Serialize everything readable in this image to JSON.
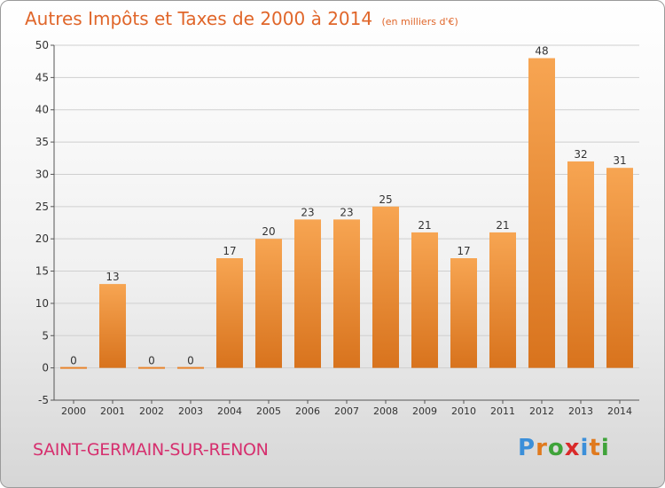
{
  "title": "Autres Impôts et Taxes de 2000 à 2014",
  "subtitle": "(en milliers d'€)",
  "commune": "SAINT-GERMAIN-SUR-RENON",
  "logo": {
    "letters": [
      "P",
      "r",
      "o",
      "x",
      "i",
      "t",
      "i"
    ],
    "colors": [
      "#3b8fd9",
      "#e07a1e",
      "#3fa33a",
      "#d92a2a",
      "#3b8fd9",
      "#e07a1e",
      "#3fa33a"
    ]
  },
  "chart_data": {
    "type": "bar",
    "categories": [
      "2000",
      "2001",
      "2002",
      "2003",
      "2004",
      "2005",
      "2006",
      "2007",
      "2008",
      "2009",
      "2010",
      "2011",
      "2012",
      "2013",
      "2014"
    ],
    "values": [
      0,
      13,
      0,
      0,
      17,
      20,
      23,
      23,
      25,
      21,
      17,
      21,
      48,
      32,
      31
    ],
    "data_labels": [
      "0",
      "13",
      "0",
      "0",
      "17",
      "20",
      "23",
      "23",
      "25",
      "21",
      "17",
      "21",
      "48",
      "32",
      "31"
    ],
    "title": "Autres Impôts et Taxes de 2000 à 2014",
    "ylim": [
      -5,
      50
    ],
    "yticks": [
      -5,
      0,
      5,
      10,
      15,
      20,
      25,
      30,
      35,
      40,
      45,
      50
    ],
    "grid": true,
    "bar_color": "#e8842d"
  }
}
